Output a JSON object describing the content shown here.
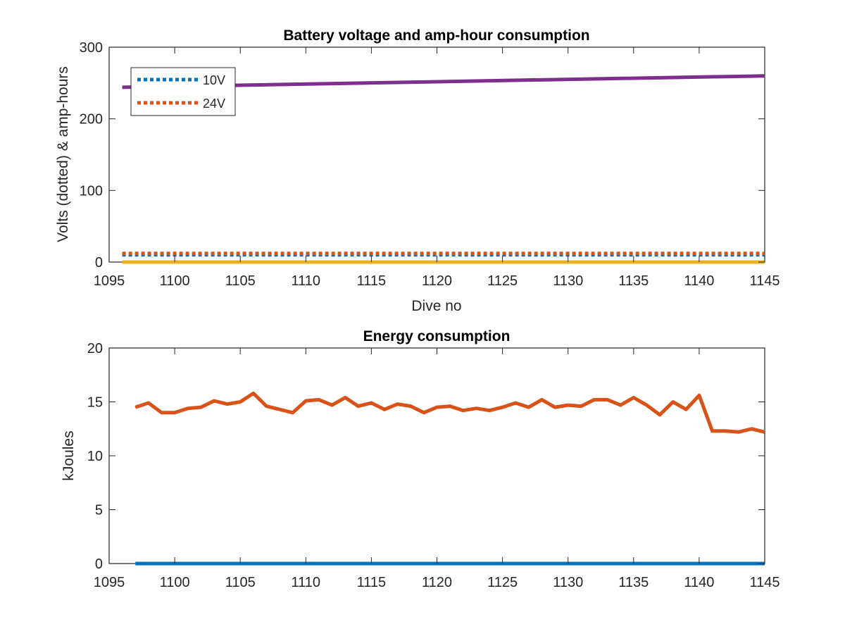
{
  "colors": {
    "blue": "#0072BD",
    "orange": "#D95319",
    "yellow": "#EDB120",
    "purple": "#7E2F8E",
    "axis": "#262626"
  },
  "chart_data": [
    {
      "type": "line",
      "title": "Battery voltage and amp-hour consumption",
      "xlabel": "Dive no",
      "ylabel": "Volts (dotted) & amp-hours",
      "xlim": [
        1095,
        1145
      ],
      "ylim": [
        0,
        300
      ],
      "xticks": [
        "1095",
        "1100",
        "1105",
        "1110",
        "1115",
        "1120",
        "1125",
        "1130",
        "1135",
        "1140",
        "1145"
      ],
      "yticks": [
        "0",
        "100",
        "200",
        "300"
      ],
      "legend_position": "top-left",
      "grid": false,
      "series": [
        {
          "name": "10V",
          "style": "dotted",
          "color": "#0072BD",
          "in_legend": true,
          "x": [
            1096,
            1145
          ],
          "y": [
            10,
            10
          ]
        },
        {
          "name": "24V",
          "style": "dotted",
          "color": "#D95319",
          "in_legend": true,
          "x": [
            1096,
            1145
          ],
          "y": [
            12,
            12
          ]
        },
        {
          "style": "solid",
          "color": "#EDB120",
          "in_legend": false,
          "x": [
            1096,
            1145
          ],
          "y": [
            0,
            0
          ]
        },
        {
          "style": "solid",
          "color": "#7E2F8E",
          "in_legend": false,
          "x": [
            1096,
            1145
          ],
          "y": [
            244,
            260
          ]
        }
      ]
    },
    {
      "type": "line",
      "title": "Energy consumption",
      "xlabel": "",
      "ylabel": "kJoules",
      "xlim": [
        1095,
        1145
      ],
      "ylim": [
        0,
        20
      ],
      "xticks": [
        "1095",
        "1100",
        "1105",
        "1110",
        "1115",
        "1120",
        "1125",
        "1130",
        "1135",
        "1140",
        "1145"
      ],
      "yticks": [
        "0",
        "5",
        "10",
        "15",
        "20"
      ],
      "grid": false,
      "series": [
        {
          "style": "solid",
          "color": "#0072BD",
          "x": [
            1097,
            1145
          ],
          "y": [
            0,
            0
          ]
        },
        {
          "style": "solid",
          "color": "#D95319",
          "x": [
            1097,
            1098,
            1099,
            1100,
            1101,
            1102,
            1103,
            1104,
            1105,
            1106,
            1107,
            1108,
            1109,
            1110,
            1111,
            1112,
            1113,
            1114,
            1115,
            1116,
            1117,
            1118,
            1119,
            1120,
            1121,
            1122,
            1123,
            1124,
            1125,
            1126,
            1127,
            1128,
            1129,
            1130,
            1131,
            1132,
            1133,
            1134,
            1135,
            1136,
            1137,
            1138,
            1139,
            1140,
            1141,
            1142,
            1143,
            1144,
            1145
          ],
          "y": [
            14.5,
            14.9,
            14.0,
            14.0,
            14.4,
            14.5,
            15.1,
            14.8,
            15.0,
            15.8,
            14.6,
            14.3,
            14.0,
            15.1,
            15.2,
            14.7,
            15.4,
            14.6,
            14.9,
            14.3,
            14.8,
            14.6,
            14.0,
            14.5,
            14.6,
            14.2,
            14.4,
            14.2,
            14.5,
            14.9,
            14.5,
            15.2,
            14.5,
            14.7,
            14.6,
            15.2,
            15.2,
            14.7,
            15.4,
            14.7,
            13.8,
            15.0,
            14.3,
            15.6,
            12.3,
            12.3,
            12.2,
            12.5,
            12.2
          ]
        }
      ]
    }
  ]
}
